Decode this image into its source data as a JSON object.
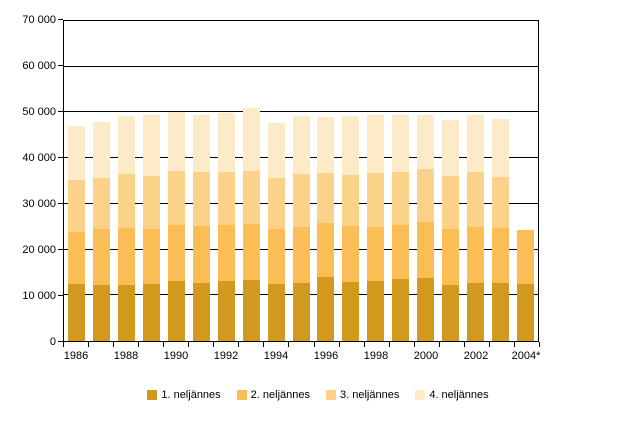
{
  "chart_data": {
    "type": "bar",
    "stacked": true,
    "categories": [
      "1986",
      "1987",
      "1988",
      "1989",
      "1990",
      "1991",
      "1992",
      "1993",
      "1994",
      "1995",
      "1996",
      "1997",
      "1998",
      "1999",
      "2000",
      "2001",
      "2002",
      "2003",
      "2004*"
    ],
    "series": [
      {
        "name": "1. neljännes",
        "color": "#D1991E",
        "values": [
          12400,
          12200,
          12200,
          12400,
          13200,
          12800,
          13200,
          13400,
          12400,
          12600,
          14000,
          13000,
          13200,
          13600,
          13800,
          12200,
          12800,
          12800,
          12400
        ]
      },
      {
        "name": "2. neljännes",
        "color": "#FBBD55",
        "values": [
          11400,
          12200,
          12600,
          12200,
          12200,
          12400,
          12200,
          12200,
          12200,
          12400,
          11800,
          12200,
          11800,
          11800,
          12200,
          12400,
          12200,
          12000,
          11800
        ]
      },
      {
        "name": "3. neljännes",
        "color": "#FCD28A",
        "values": [
          11400,
          11200,
          11800,
          11600,
          11800,
          11800,
          11600,
          11600,
          11000,
          11600,
          11000,
          11200,
          11800,
          11600,
          11600,
          11400,
          12000,
          11000,
          0
        ]
      },
      {
        "name": "4. neljännes",
        "color": "#FDEBC7",
        "values": [
          11800,
          12400,
          12600,
          13200,
          13000,
          12400,
          12800,
          13800,
          12200,
          12600,
          12200,
          12800,
          12600,
          12400,
          11800,
          12400,
          12400,
          12800,
          0
        ]
      }
    ],
    "totals": [
      47000,
      48000,
      49200,
      49400,
      50200,
      49400,
      49800,
      51000,
      47800,
      49200,
      49000,
      49200,
      49400,
      49400,
      49400,
      48400,
      49400,
      48600,
      24200
    ],
    "ylim": [
      0,
      70000
    ],
    "ytick_interval": 10000,
    "ytick_labels": [
      "0",
      "10 000",
      "20 000",
      "30 000",
      "40 000",
      "50 000",
      "60 000",
      "70 000"
    ],
    "xtick_label_every": 2,
    "xtick_labels_shown": [
      "1986",
      "1988",
      "1990",
      "1992",
      "1994",
      "1996",
      "1998",
      "2000",
      "2002",
      "2004*"
    ],
    "grid": "horizontal-solid-black",
    "legend_position": "bottom",
    "background_color": "#FFFFFF",
    "axis_color": "#000000"
  }
}
